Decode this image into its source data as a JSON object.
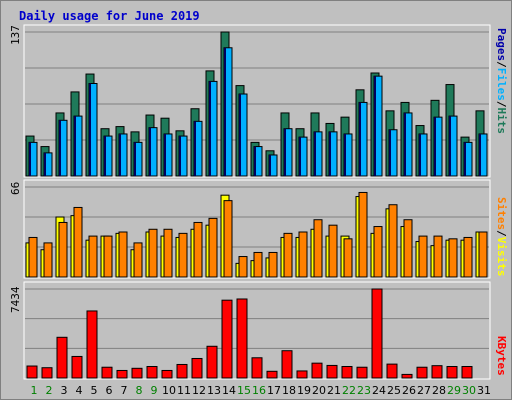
{
  "chart_data": {
    "title": "Daily usage for June 2019",
    "type": "bar",
    "days": [
      "1",
      "2",
      "3",
      "4",
      "5",
      "6",
      "7",
      "8",
      "9",
      "10",
      "11",
      "12",
      "13",
      "14",
      "15",
      "16",
      "17",
      "18",
      "19",
      "20",
      "21",
      "22",
      "23",
      "24",
      "25",
      "26",
      "27",
      "28",
      "29",
      "30",
      "31"
    ],
    "weekend_days": [
      "1",
      "2",
      "8",
      "9",
      "15",
      "16",
      "22",
      "23",
      "29",
      "30"
    ],
    "colors": {
      "hits": "#1f7a5a",
      "files": "#00b0ff",
      "pages": "#0000aa",
      "visits": "#ffff00",
      "sites": "#ff8000",
      "kbytes": "#ff0000",
      "weekday_tick": "#000000",
      "weekend_tick": "#008000",
      "background": "#c0c0c0",
      "title": "#0000cc"
    },
    "panels": [
      {
        "name": "hits-files-pages",
        "ymax_label": "137",
        "ymax": 137,
        "legend": [
          {
            "text": "Hits",
            "color": "#1f7a5a"
          },
          {
            "text": "/",
            "color": "#000000"
          },
          {
            "text": "Files",
            "color": "#00b0ff"
          },
          {
            "text": "/",
            "color": "#000000"
          },
          {
            "text": "Pages",
            "color": "#0000aa"
          }
        ],
        "series": [
          {
            "name": "Hits",
            "key": "hits",
            "values": [
              38,
              28,
              60,
              80,
              97,
              45,
              47,
              42,
              58,
              55,
              43,
              64,
              100,
              137,
              86,
              32,
              24,
              60,
              45,
              60,
              50,
              56,
              82,
              98,
              62,
              70,
              48,
              72,
              87,
              37,
              62
            ]
          },
          {
            "name": "Files",
            "key": "files",
            "values": [
              32,
              22,
              53,
              57,
              88,
              38,
              40,
              32,
              46,
              40,
              38,
              52,
              90,
              122,
              78,
              28,
              20,
              45,
              37,
              42,
              42,
              40,
              70,
              95,
              44,
              60,
              40,
              56,
              57,
              32,
              40
            ]
          },
          {
            "name": "Pages",
            "key": "pages",
            "values": [
              32,
              22,
              53,
              57,
              88,
              38,
              40,
              32,
              46,
              40,
              38,
              52,
              90,
              122,
              78,
              28,
              20,
              45,
              37,
              42,
              42,
              40,
              70,
              95,
              44,
              60,
              40,
              56,
              57,
              32,
              40
            ]
          }
        ]
      },
      {
        "name": "visits-sites",
        "ymax_label": "66",
        "ymax": 66,
        "legend": [
          {
            "text": "Visits",
            "color": "#ffff00"
          },
          {
            "text": "/",
            "color": "#000000"
          },
          {
            "text": "Sites",
            "color": "#ff8000"
          }
        ],
        "series": [
          {
            "name": "Visits",
            "key": "visits",
            "values": [
              25,
              20,
              44,
              45,
              27,
              30,
              32,
              20,
              33,
              30,
              29,
              35,
              38,
              60,
              10,
              12,
              14,
              29,
              29,
              35,
              30,
              30,
              59,
              32,
              50,
              37,
              26,
              23,
              27,
              27,
              33
            ]
          },
          {
            "name": "Sites",
            "key": "sites",
            "values": [
              29,
              25,
              40,
              51,
              30,
              30,
              33,
              25,
              35,
              35,
              32,
              40,
              43,
              56,
              15,
              18,
              18,
              32,
              33,
              42,
              38,
              28,
              62,
              37,
              53,
              42,
              30,
              30,
              28,
              29,
              33
            ]
          }
        ]
      },
      {
        "name": "kbytes",
        "ymax_label": "7434",
        "ymax": 7434,
        "legend": [
          {
            "text": "KBytes",
            "color": "#ff0000"
          }
        ],
        "series": [
          {
            "name": "KBytes",
            "key": "kbytes",
            "values": [
              1000,
              860,
              3400,
              1800,
              5600,
              900,
              630,
              810,
              960,
              630,
              1130,
              1630,
              2650,
              6500,
              6600,
              1690,
              560,
              2280,
              590,
              1240,
              1050,
              960,
              900,
              7434,
              1160,
              300,
              900,
              1030,
              960,
              960,
              0
            ]
          }
        ]
      }
    ]
  }
}
